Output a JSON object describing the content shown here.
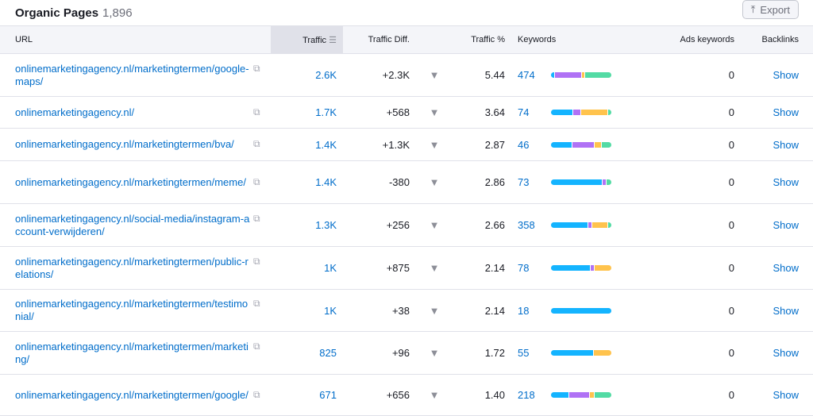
{
  "header": {
    "title": "Organic Pages",
    "count": "1,896",
    "export_label": "Export",
    "export_icon": "upload-icon"
  },
  "columns": {
    "url": "URL",
    "traffic": "Traffic",
    "traffic_diff": "Traffic Diff.",
    "traffic_pct": "Traffic %",
    "keywords": "Keywords",
    "ads_keywords": "Ads keywords",
    "backlinks": "Backlinks"
  },
  "colors": {
    "blue": "#14b4ff",
    "purple": "#b072f5",
    "yellow": "#ffc34d",
    "green": "#53dba4",
    "link": "#006dca"
  },
  "rows": [
    {
      "url": "onlinemarketingagency.nl/marketingtermen/google-maps/",
      "traffic": "2.6K",
      "diff": "+2.3K",
      "pct": "5.44",
      "keywords": "474",
      "ads": "0",
      "backlinks": "Show",
      "dist": [
        0.05,
        0.45,
        0.05,
        0.45
      ]
    },
    {
      "url": "onlinemarketingagency.nl/",
      "traffic": "1.7K",
      "diff": "+568",
      "pct": "3.64",
      "keywords": "74",
      "ads": "0",
      "backlinks": "Show",
      "dist": [
        0.37,
        0.13,
        0.44,
        0.06
      ]
    },
    {
      "url": "onlinemarketingagency.nl/marketingtermen/bva/",
      "traffic": "1.4K",
      "diff": "+1.3K",
      "pct": "2.87",
      "keywords": "46",
      "ads": "0",
      "backlinks": "Show",
      "dist": [
        0.35,
        0.38,
        0.1,
        0.17
      ]
    },
    {
      "url": "onlinemarketingagency.nl/marketingtermen/meme/",
      "traffic": "1.4K",
      "diff": "-380",
      "pct": "2.86",
      "keywords": "73",
      "ads": "0",
      "backlinks": "Show",
      "dist": [
        0.87,
        0.05,
        0,
        0.08
      ]
    },
    {
      "url": "onlinemarketingagency.nl/social-media/instagram-account-verwijderen/",
      "traffic": "1.3K",
      "diff": "+256",
      "pct": "2.66",
      "keywords": "358",
      "ads": "0",
      "backlinks": "Show",
      "dist": [
        0.63,
        0.06,
        0.26,
        0.05
      ]
    },
    {
      "url": "onlinemarketingagency.nl/marketingtermen/public-relations/",
      "traffic": "1K",
      "diff": "+875",
      "pct": "2.14",
      "keywords": "78",
      "ads": "0",
      "backlinks": "Show",
      "dist": [
        0.66,
        0.06,
        0.28,
        0
      ]
    },
    {
      "url": "onlinemarketingagency.nl/marketingtermen/testimonial/",
      "traffic": "1K",
      "diff": "+38",
      "pct": "2.14",
      "keywords": "18",
      "ads": "0",
      "backlinks": "Show",
      "dist": [
        1,
        0,
        0,
        0
      ]
    },
    {
      "url": "onlinemarketingagency.nl/marketingtermen/marketing/",
      "traffic": "825",
      "diff": "+96",
      "pct": "1.72",
      "keywords": "55",
      "ads": "0",
      "backlinks": "Show",
      "dist": [
        0.7,
        0,
        0.3,
        0
      ]
    },
    {
      "url": "onlinemarketingagency.nl/marketingtermen/google/",
      "traffic": "671",
      "diff": "+656",
      "pct": "1.40",
      "keywords": "218",
      "ads": "0",
      "backlinks": "Show",
      "dist": [
        0.3,
        0.34,
        0.07,
        0.29
      ]
    }
  ]
}
